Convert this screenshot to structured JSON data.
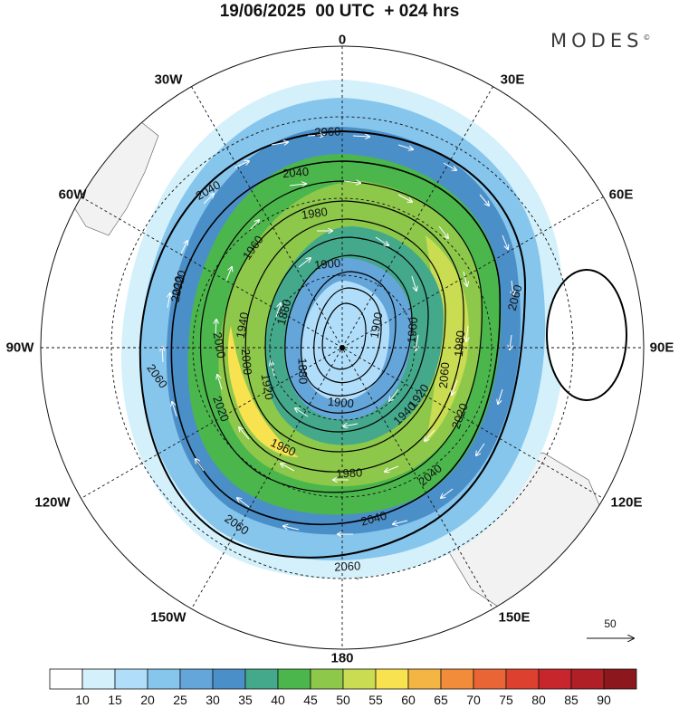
{
  "header": {
    "title": "19/06/2025  00 UTC  + 024 hrs",
    "brand": "MODES",
    "brand_mark": "©"
  },
  "map": {
    "projection": "polar-stereographic-south",
    "longitude_labels": {
      "top": "0",
      "top_left": "30W",
      "top_right": "30E",
      "upper_left": "60W",
      "upper_right": "60E",
      "left": "90W",
      "right": "90E",
      "lower_left": "120W",
      "lower_right": "120E",
      "bottom_left": "150W",
      "bottom_right": "150E",
      "bottom": "180"
    },
    "contour_labels": [
      "2060",
      "2040",
      "2040",
      "1980",
      "1960",
      "1900",
      "1880",
      "2020",
      "1940",
      "2000",
      "1880",
      "1920",
      "2020",
      "1960",
      "1900",
      "1980",
      "1940",
      "1920",
      "2020",
      "2040",
      "1980",
      "2060",
      "2040",
      "2060",
      "2060",
      "2060",
      "2060",
      "2020",
      "2000",
      "1960",
      "1900"
    ],
    "colors": {
      "land": "#f2f2f2",
      "vector": "#ffffff",
      "contour": "#000000"
    }
  },
  "vector_scale": {
    "label": "50"
  },
  "colorbar": {
    "ticks": [
      "10",
      "15",
      "20",
      "25",
      "30",
      "35",
      "40",
      "45",
      "50",
      "55",
      "60",
      "65",
      "70",
      "75",
      "80",
      "85",
      "90"
    ],
    "colors": [
      "#ffffff",
      "#d3f0fb",
      "#b0defa",
      "#86c5ec",
      "#64a5da",
      "#4b8fc9",
      "#44a88b",
      "#4bb64c",
      "#8dc84a",
      "#c9dc52",
      "#f8e24f",
      "#f5b545",
      "#f28c3b",
      "#ea6535",
      "#de4030",
      "#c8262d",
      "#b11f26",
      "#8c171c"
    ]
  }
}
